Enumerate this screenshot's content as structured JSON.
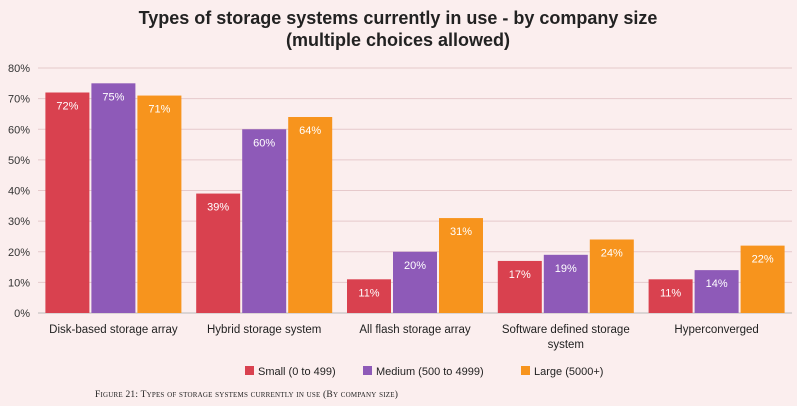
{
  "caption": "Figure 21: Types of storage systems currently in use (By company size)",
  "chart_data": {
    "type": "bar",
    "title": [
      "Types of storage systems currently in use - by company size",
      "(multiple choices allowed)"
    ],
    "categories": [
      [
        "Disk-based storage array"
      ],
      [
        "Hybrid storage system"
      ],
      [
        "All flash storage array"
      ],
      [
        "Software defined storage",
        "system"
      ],
      [
        "Hyperconverged"
      ]
    ],
    "series": [
      {
        "name": "Small (0 to 499)",
        "color": "#d9414f",
        "values": [
          72,
          39,
          11,
          17,
          11
        ]
      },
      {
        "name": "Medium (500 to 4999)",
        "color": "#8e5ab8",
        "values": [
          75,
          60,
          20,
          19,
          14
        ]
      },
      {
        "name": "Large (5000+)",
        "color": "#f7941d",
        "values": [
          71,
          64,
          31,
          24,
          22
        ]
      }
    ],
    "display_values": [
      [
        72,
        39,
        11,
        17,
        11
      ],
      [
        75,
        60,
        20,
        19,
        14
      ],
      [
        71,
        64,
        31,
        24,
        22
      ]
    ],
    "value_suffix": "%",
    "ylim": [
      0,
      80
    ],
    "yticks": [
      "0%",
      "10%",
      "20%",
      "30%",
      "40%",
      "50%",
      "60%",
      "70%",
      "80%"
    ],
    "grid": true,
    "legend_position": "bottom"
  }
}
